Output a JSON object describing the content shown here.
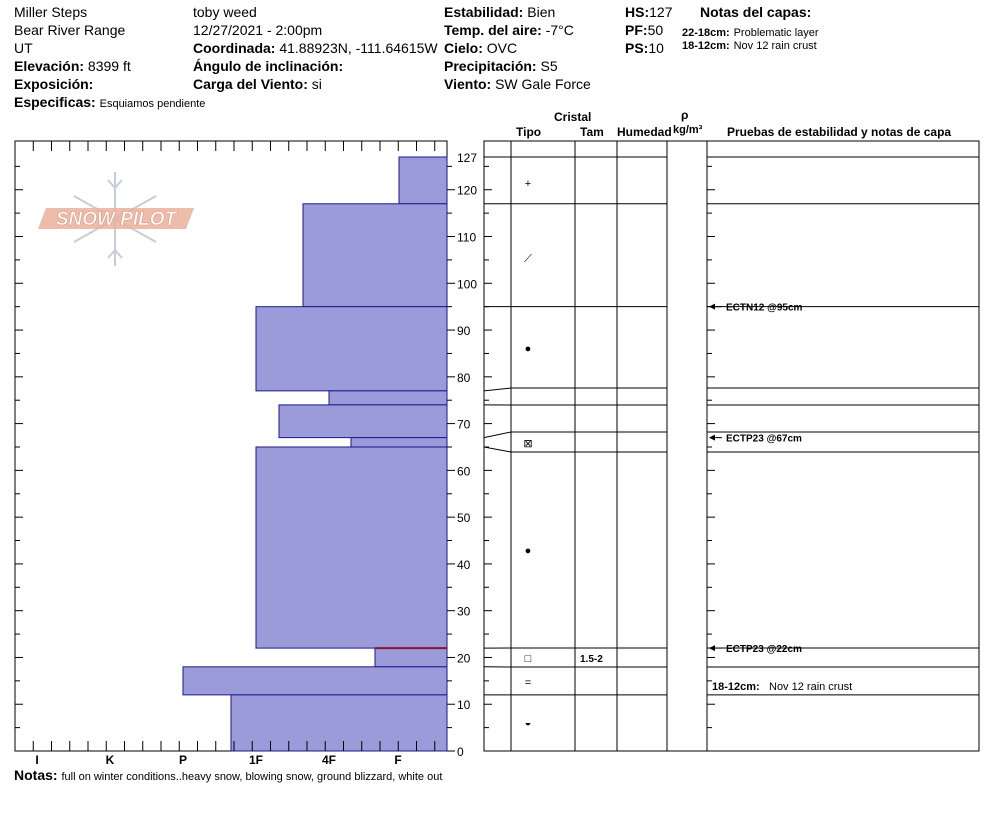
{
  "header": {
    "location": "Miller Steps",
    "range": "Bear River Range",
    "state": "UT",
    "elevation_label": "Elevación:",
    "elevation_value": "8399 ft",
    "aspect_label": "Exposición:",
    "aspect_value": "",
    "specifics_label": "Especificas:",
    "specifics_value": "Esquiamos pendiente",
    "observer": "toby weed",
    "datetime": "12/27/2021 - 2:00pm",
    "coord_label": "Coordinada:",
    "coord_value": "41.88923N, -111.64615W",
    "slope_label": "Ángulo de inclinación:",
    "slope_value": "",
    "wind_load_label": "Carga del Viento:",
    "wind_load_value": "si",
    "stability_label": "Estabilidad:",
    "stability_value": "Bien",
    "airtemp_label": "Temp. del aire:",
    "airtemp_value": "-7°C",
    "sky_label": "Cielo:",
    "sky_value": "OVC",
    "precip_label": "Precipitación:",
    "precip_value": "S5",
    "wind_label": "Viento:",
    "wind_value": "SW Gale Force",
    "hs_label": "HS:",
    "hs_value": "127",
    "pf_label": "PF:",
    "pf_value": "50",
    "ps_label": "PS:",
    "ps_value": "10",
    "layer_notes_label": "Notas del capas:",
    "layer_notes": [
      {
        "range": "22-18cm:",
        "text": "Problematic layer"
      },
      {
        "range": "18-12cm:",
        "text": "Nov 12 rain crust"
      }
    ]
  },
  "columns": {
    "cristal": "Cristal",
    "tipo": "Tipo",
    "tam": "Tam",
    "humedad": "Humedad",
    "rho": "ρ",
    "density_unit": "kg/m³",
    "tests": "Pruebas de estabilidad y notas de capa"
  },
  "logo_text": "SNOW PILOT",
  "notes_label": "Notas:",
  "notes_value": "full on winter conditions..heavy snow, blowing snow, ground blizzard, white out",
  "colors": {
    "bar_fill": "#9b9bd9",
    "bar_stroke": "#1a1a8a",
    "marker": "#8a1530",
    "logo": "#e8a890"
  },
  "chart_data": {
    "type": "bar",
    "orientation": "horizontal",
    "x_categories": [
      "I",
      "K",
      "P",
      "1F",
      "4F",
      "F"
    ],
    "y_ticks": [
      0,
      10,
      20,
      30,
      40,
      50,
      60,
      70,
      80,
      90,
      100,
      110,
      120,
      127
    ],
    "ylim": [
      0,
      127
    ],
    "layers": [
      {
        "bottom": 117,
        "top": 127,
        "hardness": "F+"
      },
      {
        "bottom": 95,
        "top": 117,
        "hardness": "4F-"
      },
      {
        "bottom": 77,
        "top": 95,
        "hardness": "1F"
      },
      {
        "bottom": 74,
        "top": 77,
        "hardness": "4F"
      },
      {
        "bottom": 67,
        "top": 74,
        "hardness": "1F+"
      },
      {
        "bottom": 65,
        "top": 67,
        "hardness": "4F+"
      },
      {
        "bottom": 22,
        "top": 65,
        "hardness": "1F"
      },
      {
        "bottom": 18,
        "top": 22,
        "hardness": "F-"
      },
      {
        "bottom": 12,
        "top": 18,
        "hardness": "P"
      },
      {
        "bottom": 0,
        "top": 12,
        "hardness": "P-"
      }
    ],
    "marker_depth": 22,
    "boundaries": [
      127,
      117,
      95,
      77,
      74,
      67,
      65,
      22,
      18,
      12
    ],
    "grain_symbols": [
      {
        "depth": 122,
        "symbol": "+"
      },
      {
        "depth": 105,
        "symbol": "⟋"
      },
      {
        "depth": 86,
        "symbol": "●"
      },
      {
        "depth": 66.5,
        "symbol": "⊠"
      },
      {
        "depth": 43,
        "symbol": "●"
      },
      {
        "depth": 20,
        "symbol": "□"
      },
      {
        "depth": 15,
        "symbol": "="
      },
      {
        "depth": 6,
        "symbol": "◒"
      }
    ],
    "grain_sizes": [
      {
        "depth": 20,
        "value": "1.5-2"
      }
    ],
    "tests": [
      {
        "depth": 95,
        "label": "ECTN12 @95cm"
      },
      {
        "depth": 67,
        "label": "ECTP23 @67cm"
      },
      {
        "depth": 22,
        "label": "ECTP23 @22cm"
      }
    ],
    "layer_comments": [
      {
        "depth": 14,
        "range": "18-12cm:",
        "text": "Nov 12 rain crust"
      }
    ]
  }
}
